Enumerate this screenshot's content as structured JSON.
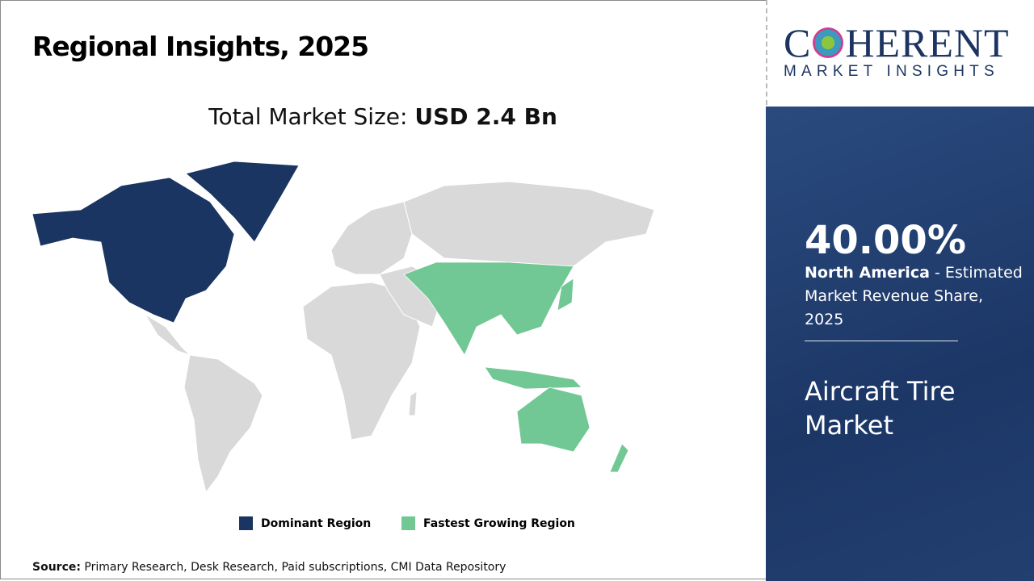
{
  "title": "Regional Insights, 2025",
  "market_size": {
    "label": "Total Market Size:",
    "value": "USD 2.4 Bn"
  },
  "legend": [
    {
      "label": "Dominant Region",
      "color": "#1a3561"
    },
    {
      "label": "Fastest Growing Region",
      "color": "#72c894"
    }
  ],
  "colors": {
    "other": "#d9d9d9",
    "panel": "#1e3a6a"
  },
  "source": {
    "label": "Source:",
    "text": " Primary Research, Desk Research, Paid subscriptions, CMI Data Repository"
  },
  "logo": {
    "top": "COHERENT",
    "bottom": "MARKET INSIGHTS"
  },
  "panel": {
    "share": "40.00%",
    "region": "North America",
    "desc": " - Estimated Market Revenue Share, 2025",
    "market": "Aircraft Tire Market"
  }
}
